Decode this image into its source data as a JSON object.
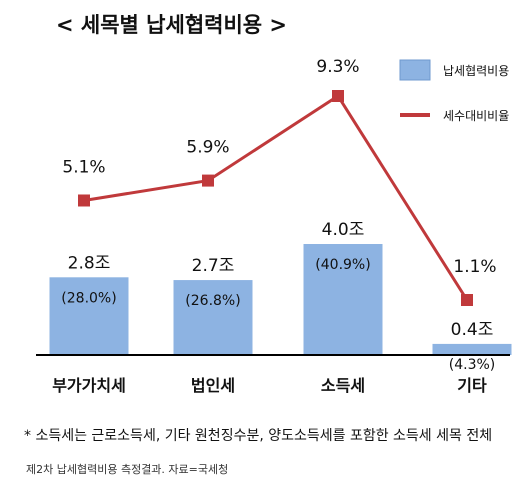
{
  "chart_data": {
    "type": "bar",
    "title": "< 세목별 납세협력비용 >",
    "categories": [
      "부가가치세",
      "법인세",
      "소득세",
      "기타"
    ],
    "series": [
      {
        "name": "납세협력비용",
        "type": "bar",
        "values": [
          2.8,
          2.7,
          4.0,
          0.4
        ],
        "value_labels": [
          "2.8조",
          "2.7조",
          "4.0조",
          "0.4조"
        ],
        "share_labels": [
          "(28.0%)",
          "(26.8%)",
          "(40.9%)",
          "(4.3%)"
        ],
        "color": "#8db3e2"
      },
      {
        "name": "세수대비비율",
        "type": "line",
        "values": [
          5.1,
          5.9,
          9.3,
          1.1
        ],
        "value_labels": [
          "5.1%",
          "5.9%",
          "9.3%",
          "1.1%"
        ],
        "color": "#c0393b"
      }
    ],
    "legend_position": "top-right",
    "grid": false
  },
  "footnote": "* 소득세는 근로소득세, 기타 원천징수분, 양도소득세를 포함한 소득세 세목 전체",
  "source": "제2차 납세협력비용 측정결과. 자료=국세청"
}
